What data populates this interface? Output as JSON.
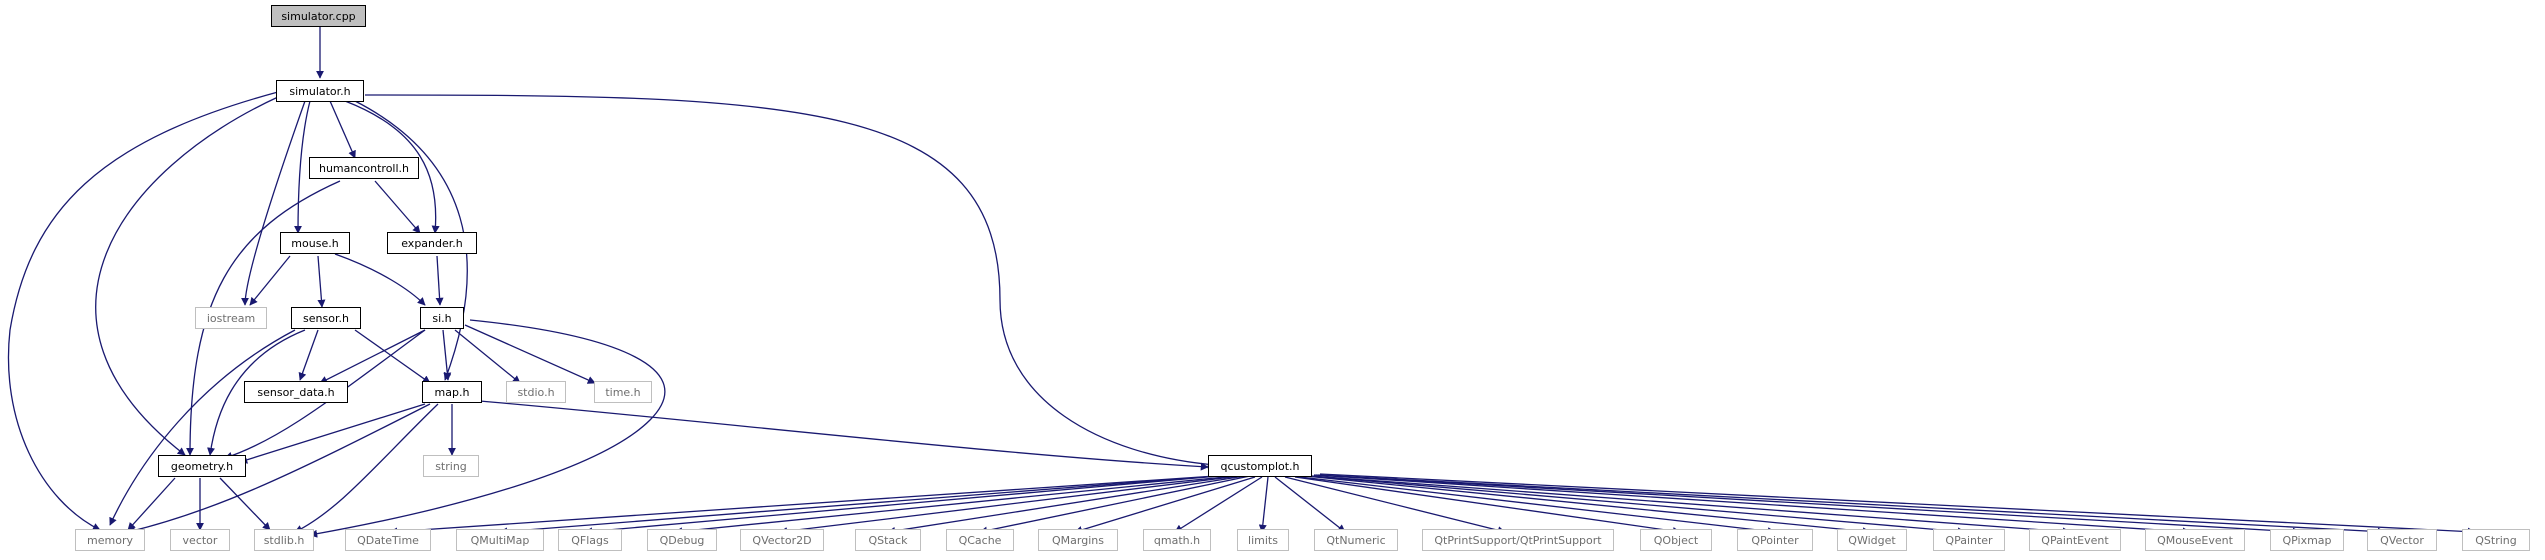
{
  "diagram": {
    "edge_color": "#191970",
    "nodes": {
      "simulator_cpp": "simulator.cpp",
      "simulator_h": "simulator.h",
      "humancontroll_h": "humancontroll.h",
      "mouse_h": "mouse.h",
      "expander_h": "expander.h",
      "iostream": "iostream",
      "sensor_h": "sensor.h",
      "si_h": "si.h",
      "sensor_data_h": "sensor_data.h",
      "map_h": "map.h",
      "stdio_h": "stdio.h",
      "time_h": "time.h",
      "string": "string",
      "geometry_h": "geometry.h",
      "qcustomplot_h": "qcustomplot.h",
      "memory": "memory",
      "vector": "vector",
      "stdlib_h": "stdlib.h",
      "QDateTime": "QDateTime",
      "QMultiMap": "QMultiMap",
      "QFlags": "QFlags",
      "QDebug": "QDebug",
      "QVector2D": "QVector2D",
      "QStack": "QStack",
      "QCache": "QCache",
      "QMargins": "QMargins",
      "qmath_h": "qmath.h",
      "limits": "limits",
      "QtNumeric": "QtNumeric",
      "QtPrintSupport": "QtPrintSupport/QtPrintSupport",
      "QObject": "QObject",
      "QPointer": "QPointer",
      "QWidget": "QWidget",
      "QPainter": "QPainter",
      "QPaintEvent": "QPaintEvent",
      "QMouseEvent": "QMouseEvent",
      "QPixmap": "QPixmap",
      "QVector": "QVector",
      "QString": "QString"
    }
  }
}
